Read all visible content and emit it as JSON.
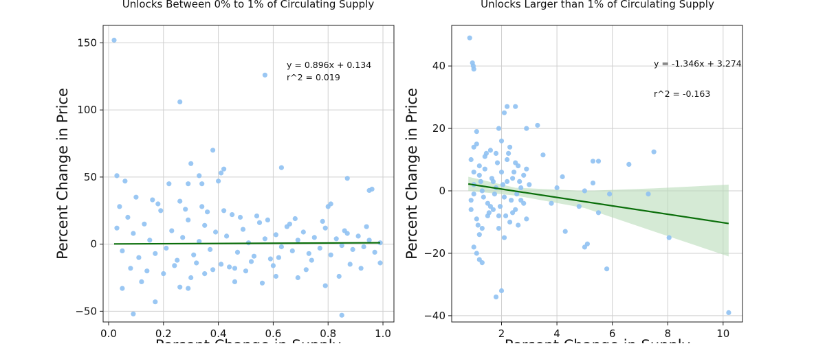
{
  "colors": {
    "points": "#8fc1f2",
    "fit_line": "#0a6e0a",
    "band": "#b9dcb9",
    "grid": "#cfcfcf",
    "frame": "#1a1a1a"
  },
  "chart_data": [
    {
      "type": "scatter",
      "title": "Unlocks Between 0% to 1% of Circulating Supply",
      "xlabel": "Percent Change in Supply",
      "ylabel": "Percent Change in Price",
      "xlim": [
        -0.02,
        1.04
      ],
      "ylim": [
        -58,
        163
      ],
      "xticks": [
        0.0,
        0.2,
        0.4,
        0.6,
        0.8,
        1.0
      ],
      "xtick_labels": [
        "0.0",
        "0.2",
        "0.4",
        "0.6",
        "0.8",
        "1.0"
      ],
      "yticks": [
        -50,
        0,
        50,
        100,
        150
      ],
      "ytick_labels": [
        "−50",
        "0",
        "50",
        "100",
        "150"
      ],
      "grid": true,
      "annotation": {
        "equation": "y = 0.896x + 0.134",
        "r2": "r^2 = 0.019"
      },
      "regression": {
        "slope": 0.896,
        "intercept": 0.134,
        "x_range": [
          0.02,
          0.99
        ]
      },
      "points": [
        [
          0.02,
          152
        ],
        [
          0.57,
          126
        ],
        [
          0.26,
          106
        ],
        [
          0.38,
          70
        ],
        [
          0.3,
          60
        ],
        [
          0.42,
          56
        ],
        [
          0.41,
          53
        ],
        [
          0.63,
          57
        ],
        [
          0.03,
          51
        ],
        [
          0.33,
          51
        ],
        [
          0.06,
          47
        ],
        [
          0.87,
          49
        ],
        [
          0.4,
          47
        ],
        [
          0.95,
          40
        ],
        [
          0.96,
          41
        ],
        [
          0.29,
          45
        ],
        [
          0.34,
          45
        ],
        [
          0.22,
          45
        ],
        [
          0.81,
          30
        ],
        [
          0.8,
          28
        ],
        [
          0.09,
          -52
        ],
        [
          0.17,
          -43
        ],
        [
          0.85,
          -53
        ],
        [
          0.26,
          -32
        ],
        [
          0.29,
          -33
        ],
        [
          0.46,
          -28
        ],
        [
          0.56,
          -29
        ],
        [
          0.79,
          -31
        ],
        [
          0.05,
          -33
        ],
        [
          0.69,
          -25
        ],
        [
          0.72,
          -19
        ],
        [
          0.84,
          -24
        ],
        [
          0.92,
          -18
        ],
        [
          0.99,
          -14
        ],
        [
          0.61,
          -24
        ],
        [
          0.12,
          -28
        ],
        [
          0.35,
          -22
        ],
        [
          0.5,
          -20
        ],
        [
          0.03,
          12
        ],
        [
          0.05,
          -5
        ],
        [
          0.07,
          20
        ],
        [
          0.09,
          8
        ],
        [
          0.11,
          -10
        ],
        [
          0.13,
          15
        ],
        [
          0.15,
          3
        ],
        [
          0.17,
          -7
        ],
        [
          0.19,
          25
        ],
        [
          0.21,
          -3
        ],
        [
          0.23,
          10
        ],
        [
          0.25,
          -12
        ],
        [
          0.27,
          5
        ],
        [
          0.29,
          18
        ],
        [
          0.31,
          -8
        ],
        [
          0.33,
          2
        ],
        [
          0.35,
          14
        ],
        [
          0.37,
          -4
        ],
        [
          0.39,
          9
        ],
        [
          0.41,
          -15
        ],
        [
          0.43,
          6
        ],
        [
          0.45,
          22
        ],
        [
          0.47,
          -6
        ],
        [
          0.49,
          11
        ],
        [
          0.51,
          1
        ],
        [
          0.53,
          -9
        ],
        [
          0.55,
          16
        ],
        [
          0.57,
          4
        ],
        [
          0.59,
          -11
        ],
        [
          0.61,
          7
        ],
        [
          0.63,
          -2
        ],
        [
          0.65,
          13
        ],
        [
          0.67,
          -5
        ],
        [
          0.69,
          3
        ],
        [
          0.71,
          9
        ],
        [
          0.73,
          -7
        ],
        [
          0.75,
          5
        ],
        [
          0.77,
          -3
        ],
        [
          0.79,
          12
        ],
        [
          0.81,
          -8
        ],
        [
          0.83,
          4
        ],
        [
          0.85,
          -1
        ],
        [
          0.87,
          8
        ],
        [
          0.89,
          -4
        ],
        [
          0.91,
          6
        ],
        [
          0.93,
          -2
        ],
        [
          0.95,
          3
        ],
        [
          0.97,
          -6
        ],
        [
          0.99,
          1
        ],
        [
          0.04,
          28
        ],
        [
          0.08,
          -18
        ],
        [
          0.14,
          -20
        ],
        [
          0.18,
          30
        ],
        [
          0.24,
          -16
        ],
        [
          0.28,
          26
        ],
        [
          0.32,
          -14
        ],
        [
          0.36,
          24
        ],
        [
          0.44,
          -17
        ],
        [
          0.48,
          20
        ],
        [
          0.52,
          -13
        ],
        [
          0.58,
          18
        ],
        [
          0.62,
          -10
        ],
        [
          0.66,
          15
        ],
        [
          0.74,
          -12
        ],
        [
          0.78,
          17
        ],
        [
          0.86,
          10
        ],
        [
          0.88,
          -15
        ],
        [
          0.94,
          13
        ],
        [
          0.1,
          35
        ],
        [
          0.16,
          33
        ],
        [
          0.2,
          -22
        ],
        [
          0.26,
          32
        ],
        [
          0.3,
          -25
        ],
        [
          0.34,
          28
        ],
        [
          0.38,
          -19
        ],
        [
          0.42,
          25
        ],
        [
          0.46,
          -18
        ],
        [
          0.54,
          21
        ],
        [
          0.6,
          -16
        ],
        [
          0.68,
          19
        ]
      ]
    },
    {
      "type": "scatter",
      "title": "Unlocks Larger than 1% of Circulating Supply",
      "xlabel": "Percent Change in Supply",
      "ylabel": "Percent Change in Price",
      "xlim": [
        0.2,
        10.7
      ],
      "ylim": [
        -42,
        53
      ],
      "xticks": [
        2,
        4,
        6,
        8,
        10
      ],
      "xtick_labels": [
        "2",
        "4",
        "6",
        "8",
        "10"
      ],
      "yticks": [
        -40,
        -20,
        0,
        20,
        40
      ],
      "ytick_labels": [
        "−40",
        "−20",
        "0",
        "20",
        "40"
      ],
      "grid": true,
      "annotation": {
        "equation": "y = -1.346x + 3.274",
        "r2": "r^2 = -0.163"
      },
      "regression": {
        "slope": -1.346,
        "intercept": 3.274,
        "x_range": [
          0.8,
          10.2
        ]
      },
      "band": {
        "x": [
          0.8,
          2.5,
          5.0,
          7.5,
          10.2
        ],
        "upper": [
          4.5,
          1.0,
          0.0,
          0.8,
          2.0
        ],
        "lower": [
          0.0,
          -1.5,
          -5.5,
          -13.0,
          -21.0
        ]
      },
      "points": [
        [
          0.85,
          49
        ],
        [
          0.95,
          41
        ],
        [
          0.98,
          40
        ],
        [
          1.0,
          39
        ],
        [
          2.0,
          -32
        ],
        [
          1.8,
          -34
        ],
        [
          1.0,
          -18
        ],
        [
          1.1,
          -20
        ],
        [
          1.2,
          -22
        ],
        [
          1.3,
          -23
        ],
        [
          5.8,
          -25
        ],
        [
          10.2,
          -39
        ],
        [
          8.05,
          -15
        ],
        [
          7.5,
          12.5
        ],
        [
          6.6,
          8.5
        ],
        [
          5.3,
          9.5
        ],
        [
          5.5,
          9.5
        ],
        [
          5.3,
          2.5
        ],
        [
          5.1,
          -17
        ],
        [
          5.0,
          -18
        ],
        [
          5.5,
          -7
        ],
        [
          4.8,
          -5
        ],
        [
          4.3,
          -13
        ],
        [
          4.2,
          4.5
        ],
        [
          4.0,
          1
        ],
        [
          5.0,
          0
        ],
        [
          5.9,
          -1
        ],
        [
          7.3,
          -1
        ],
        [
          3.8,
          -4
        ],
        [
          3.5,
          11.5
        ],
        [
          3.3,
          21
        ],
        [
          2.9,
          20
        ],
        [
          2.5,
          27
        ],
        [
          2.2,
          27
        ],
        [
          2.1,
          25
        ],
        [
          1.9,
          20
        ],
        [
          1.0,
          14
        ],
        [
          1.1,
          19
        ],
        [
          1.2,
          8
        ],
        [
          1.6,
          -5
        ],
        [
          1.7,
          3
        ],
        [
          1.8,
          12
        ],
        [
          1.9,
          -8
        ],
        [
          2.0,
          6
        ],
        [
          2.1,
          -2
        ],
        [
          2.2,
          10
        ],
        [
          2.3,
          -10
        ],
        [
          2.4,
          4
        ],
        [
          2.5,
          -6
        ],
        [
          2.6,
          8
        ],
        [
          2.7,
          -3
        ],
        [
          2.8,
          5
        ],
        [
          2.9,
          -9
        ],
        [
          3.0,
          2
        ],
        [
          0.9,
          -6
        ],
        [
          1.0,
          2
        ],
        [
          1.1,
          -9
        ],
        [
          1.2,
          5
        ],
        [
          1.3,
          -12
        ],
        [
          1.4,
          7
        ],
        [
          1.5,
          -4
        ],
        [
          0.9,
          10
        ],
        [
          1.0,
          -1
        ],
        [
          1.1,
          15
        ],
        [
          1.2,
          -14
        ],
        [
          1.3,
          0
        ],
        [
          1.4,
          11
        ],
        [
          1.5,
          -8
        ],
        [
          1.6,
          13
        ],
        [
          1.7,
          -6
        ],
        [
          1.8,
          1
        ],
        [
          1.9,
          -12
        ],
        [
          2.0,
          16
        ],
        [
          2.1,
          -15
        ],
        [
          2.2,
          3
        ],
        [
          2.3,
          14
        ],
        [
          2.4,
          -7
        ],
        [
          2.5,
          9
        ],
        [
          2.6,
          -11
        ],
        [
          2.7,
          1
        ],
        [
          2.8,
          -4
        ],
        [
          2.9,
          7
        ],
        [
          0.9,
          -3
        ],
        [
          1.0,
          6
        ],
        [
          1.15,
          -11
        ],
        [
          1.25,
          3
        ],
        [
          1.35,
          -2
        ],
        [
          1.45,
          12
        ],
        [
          1.55,
          -7
        ],
        [
          1.65,
          4
        ],
        [
          1.75,
          -1
        ],
        [
          1.85,
          9
        ],
        [
          1.95,
          -5
        ],
        [
          2.05,
          2
        ],
        [
          2.15,
          -8
        ],
        [
          2.25,
          12
        ],
        [
          2.35,
          -3
        ],
        [
          2.45,
          6
        ],
        [
          2.55,
          -1
        ],
        [
          2.65,
          3
        ]
      ]
    }
  ]
}
